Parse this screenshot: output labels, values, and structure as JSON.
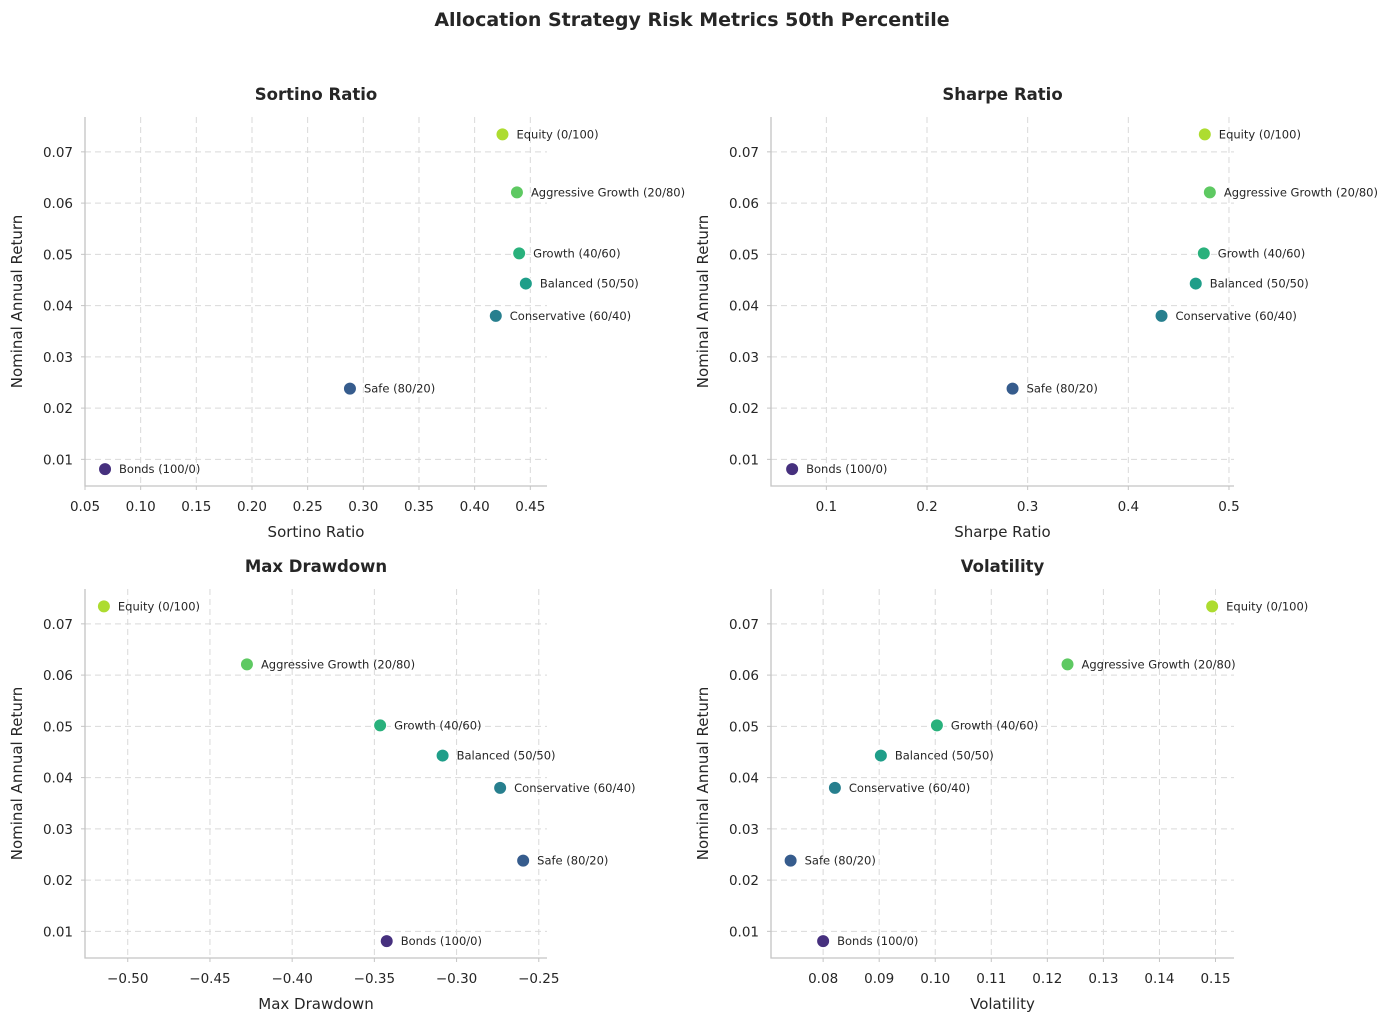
{
  "chart_data": {
    "title": "Allocation Strategy Risk Metrics 50th Percentile",
    "panels": [
      {
        "type": "scatter",
        "title": "Sortino Ratio",
        "xlabel": "Sortino Ratio",
        "ylabel": "Nominal Annual Return",
        "xlim": [
          0.05,
          0.465
        ],
        "ylim": [
          0.0048,
          0.0768
        ],
        "xticks": [
          "0.05",
          "0.10",
          "0.15",
          "0.20",
          "0.25",
          "0.30",
          "0.35",
          "0.40",
          "0.45"
        ],
        "yticks": [
          "0.01",
          "0.02",
          "0.03",
          "0.04",
          "0.05",
          "0.06",
          "0.07"
        ],
        "grid": true,
        "points": [
          {
            "label": "Bonds (100/0)",
            "x": 0.068,
            "y": 0.0081,
            "color": "#46307e"
          },
          {
            "label": "Safe (80/20)",
            "x": 0.288,
            "y": 0.0238,
            "color": "#365c8d"
          },
          {
            "label": "Conservative (60/40)",
            "x": 0.419,
            "y": 0.038,
            "color": "#277f8e"
          },
          {
            "label": "Balanced (50/50)",
            "x": 0.446,
            "y": 0.0443,
            "color": "#1f9e89"
          },
          {
            "label": "Growth (40/60)",
            "x": 0.44,
            "y": 0.0502,
            "color": "#29b17c"
          },
          {
            "label": "Aggressive Growth (20/80)",
            "x": 0.438,
            "y": 0.0621,
            "color": "#5ec962"
          },
          {
            "label": "Equity (0/100)",
            "x": 0.425,
            "y": 0.0734,
            "color": "#addc30"
          }
        ]
      },
      {
        "type": "scatter",
        "title": "Sharpe Ratio",
        "xlabel": "Sharpe Ratio",
        "ylabel": "Nominal Annual Return",
        "xlim": [
          0.045,
          0.505
        ],
        "ylim": [
          0.0048,
          0.0768
        ],
        "xticks": [
          "0.1",
          "0.2",
          "0.3",
          "0.4",
          "0.5"
        ],
        "yticks": [
          "0.01",
          "0.02",
          "0.03",
          "0.04",
          "0.05",
          "0.06",
          "0.07"
        ],
        "grid": true,
        "points": [
          {
            "label": "Bonds (100/0)",
            "x": 0.066,
            "y": 0.0081,
            "color": "#46307e"
          },
          {
            "label": "Safe (80/20)",
            "x": 0.285,
            "y": 0.0238,
            "color": "#365c8d"
          },
          {
            "label": "Conservative (60/40)",
            "x": 0.433,
            "y": 0.038,
            "color": "#277f8e"
          },
          {
            "label": "Balanced (50/50)",
            "x": 0.467,
            "y": 0.0443,
            "color": "#1f9e89"
          },
          {
            "label": "Growth (40/60)",
            "x": 0.475,
            "y": 0.0502,
            "color": "#29b17c"
          },
          {
            "label": "Aggressive Growth (20/80)",
            "x": 0.481,
            "y": 0.0621,
            "color": "#5ec962"
          },
          {
            "label": "Equity (0/100)",
            "x": 0.476,
            "y": 0.0734,
            "color": "#addc30"
          }
        ]
      },
      {
        "type": "scatter",
        "title": "Max Drawdown",
        "xlabel": "Max Drawdown",
        "ylabel": "Nominal Annual Return",
        "xlim": [
          -0.526,
          -0.245
        ],
        "ylim": [
          0.0048,
          0.0768
        ],
        "xticks": [
          "-0.50",
          "-0.45",
          "-0.40",
          "-0.35",
          "-0.30",
          "-0.25"
        ],
        "yticks": [
          "0.01",
          "0.02",
          "0.03",
          "0.04",
          "0.05",
          "0.06",
          "0.07"
        ],
        "grid": true,
        "points": [
          {
            "label": "Bonds (100/0)",
            "x": -0.3425,
            "y": 0.0081,
            "color": "#46307e"
          },
          {
            "label": "Safe (80/20)",
            "x": -0.2595,
            "y": 0.0238,
            "color": "#365c8d"
          },
          {
            "label": "Conservative (60/40)",
            "x": -0.2735,
            "y": 0.038,
            "color": "#277f8e"
          },
          {
            "label": "Balanced (50/50)",
            "x": -0.3085,
            "y": 0.0443,
            "color": "#1f9e89"
          },
          {
            "label": "Growth (40/60)",
            "x": -0.3465,
            "y": 0.0502,
            "color": "#29b17c"
          },
          {
            "label": "Aggressive Growth (20/80)",
            "x": -0.4275,
            "y": 0.0621,
            "color": "#5ec962"
          },
          {
            "label": "Equity (0/100)",
            "x": -0.5145,
            "y": 0.0734,
            "color": "#addc30"
          }
        ]
      },
      {
        "type": "scatter",
        "title": "Volatility",
        "xlabel": "Volatility",
        "ylabel": "Nominal Annual Return",
        "xlim": [
          0.0707,
          0.1533
        ],
        "ylim": [
          0.0048,
          0.0768
        ],
        "xticks": [
          "0.08",
          "0.09",
          "0.10",
          "0.11",
          "0.12",
          "0.13",
          "0.14",
          "0.15"
        ],
        "yticks": [
          "0.01",
          "0.02",
          "0.03",
          "0.04",
          "0.05",
          "0.06",
          "0.07"
        ],
        "grid": true,
        "points": [
          {
            "label": "Bonds (100/0)",
            "x": 0.08,
            "y": 0.0081,
            "color": "#46307e"
          },
          {
            "label": "Safe (80/20)",
            "x": 0.0742,
            "y": 0.0238,
            "color": "#365c8d"
          },
          {
            "label": "Conservative (60/40)",
            "x": 0.0821,
            "y": 0.038,
            "color": "#277f8e"
          },
          {
            "label": "Balanced (50/50)",
            "x": 0.0903,
            "y": 0.0443,
            "color": "#1f9e89"
          },
          {
            "label": "Growth (40/60)",
            "x": 0.1003,
            "y": 0.0502,
            "color": "#29b17c"
          },
          {
            "label": "Aggressive Growth (20/80)",
            "x": 0.1236,
            "y": 0.0621,
            "color": "#5ec962"
          },
          {
            "label": "Equity (0/100)",
            "x": 0.1494,
            "y": 0.0734,
            "color": "#addc30"
          }
        ]
      }
    ]
  }
}
